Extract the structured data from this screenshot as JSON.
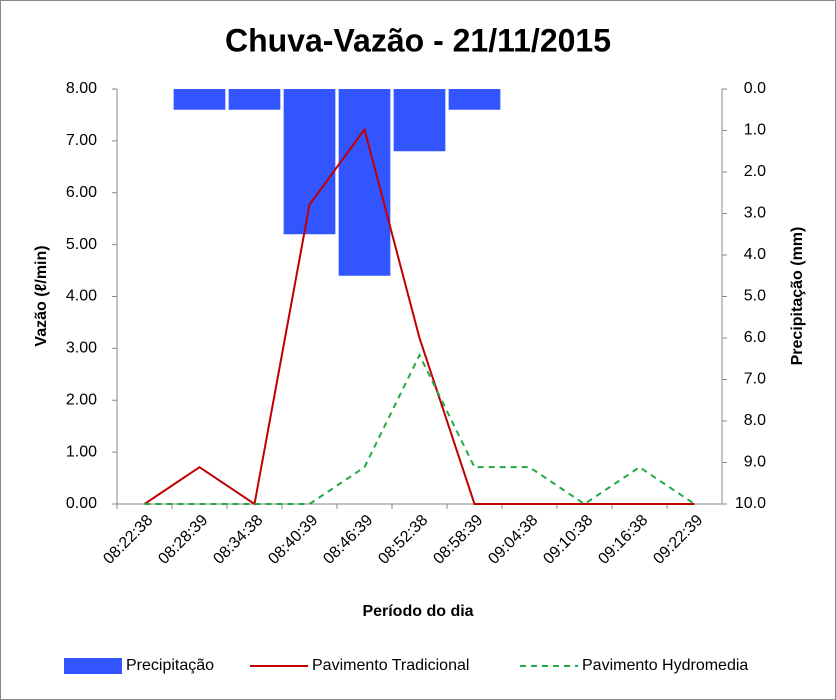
{
  "chart_data": {
    "type": "bar-line",
    "title": "Chuva-Vazão - 21/11/2015",
    "x_label": "Período do dia",
    "y_label": "Vazão (ℓ/min)",
    "y2_label": "Precipitação (mm)",
    "categories": [
      "08:22:38",
      "08:28:39",
      "08:34:38",
      "08:40:39",
      "08:46:39",
      "08:52:38",
      "08:58:39",
      "09:04:38",
      "09:10:38",
      "09:16:38",
      "09:22:39"
    ],
    "series": [
      {
        "name": "Precipitação",
        "kind": "bar",
        "axis": "y2",
        "color": "#3355ff",
        "values": [
          null,
          0.5,
          0.5,
          3.5,
          4.5,
          1.5,
          0.5,
          null,
          null,
          null,
          null
        ]
      },
      {
        "name": "Pavimento Tradicional",
        "kind": "line",
        "color": "#c00000",
        "dash": false,
        "values": [
          0,
          0.71,
          0,
          5.77,
          7.22,
          3.2,
          0,
          0,
          0,
          0,
          0
        ]
      },
      {
        "name": "Pavimento Hydromedia",
        "kind": "line",
        "color": "#22aa44",
        "dash": true,
        "values": [
          0,
          0,
          0,
          0,
          0.71,
          2.87,
          0.71,
          0.71,
          0,
          0.71,
          0
        ]
      }
    ],
    "ylim": [
      0,
      8
    ],
    "yticks": [
      {
        "value": 0,
        "label": "0.00"
      },
      {
        "value": 1,
        "label": "1.00"
      },
      {
        "value": 2,
        "label": "2.00"
      },
      {
        "value": 3,
        "label": "3.00"
      },
      {
        "value": 4,
        "label": "4.00"
      },
      {
        "value": 5,
        "label": "5.00"
      },
      {
        "value": 6,
        "label": "6.00"
      },
      {
        "value": 7,
        "label": "7.00"
      },
      {
        "value": 8,
        "label": "8.00"
      }
    ],
    "y2lim": [
      0,
      10
    ],
    "y2_reversed": true,
    "y2ticks": [
      {
        "value": 0,
        "label": "0.0"
      },
      {
        "value": 1,
        "label": "1.0"
      },
      {
        "value": 2,
        "label": "2.0"
      },
      {
        "value": 3,
        "label": "3.0"
      },
      {
        "value": 4,
        "label": "4.0"
      },
      {
        "value": 5,
        "label": "5.0"
      },
      {
        "value": 6,
        "label": "6.0"
      },
      {
        "value": 7,
        "label": "7.0"
      },
      {
        "value": 8,
        "label": "8.0"
      },
      {
        "value": 9,
        "label": "9.0"
      },
      {
        "value": 10,
        "label": "10.0"
      }
    ],
    "legend": "bottom"
  }
}
